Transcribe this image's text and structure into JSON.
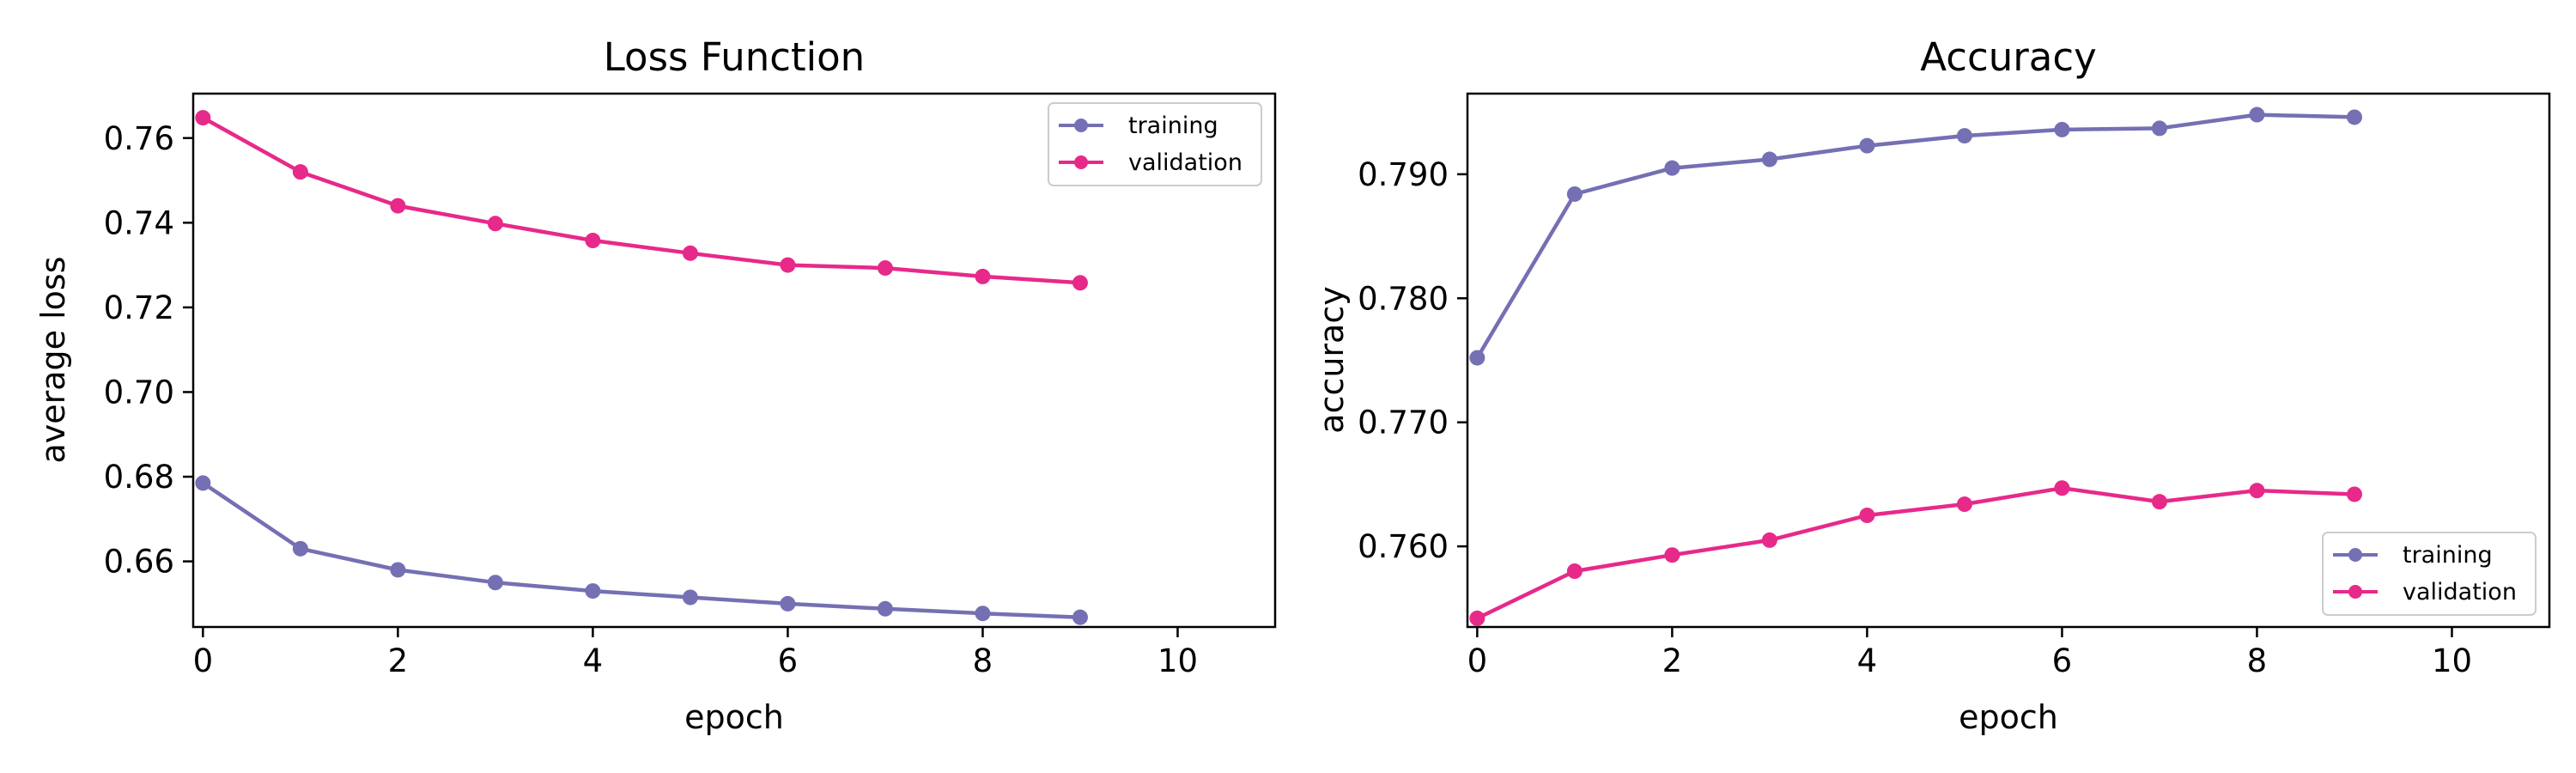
{
  "chart_data": [
    {
      "type": "line",
      "title": "Loss Function",
      "xlabel": "epoch",
      "ylabel": "average loss",
      "xlim": [
        -0.1,
        11
      ],
      "ylim": [
        0.6445,
        0.7705
      ],
      "xticks": [
        "0",
        "2",
        "4",
        "6",
        "8",
        "10"
      ],
      "yticks": [
        "0.66",
        "0.68",
        "0.70",
        "0.72",
        "0.74",
        "0.76"
      ],
      "grid": false,
      "legend_position": "top-right",
      "x": [
        0,
        1,
        2,
        3,
        4,
        5,
        6,
        7,
        8,
        9
      ],
      "series": [
        {
          "name": "training",
          "color": "#7570b3",
          "values": [
            0.6785,
            0.663,
            0.658,
            0.655,
            0.653,
            0.6515,
            0.65,
            0.6488,
            0.6477,
            0.6468
          ]
        },
        {
          "name": "validation",
          "color": "#e7298a",
          "values": [
            0.7648,
            0.752,
            0.744,
            0.7398,
            0.7358,
            0.7328,
            0.73,
            0.7293,
            0.7273,
            0.7258
          ]
        }
      ]
    },
    {
      "type": "line",
      "title": "Accuracy",
      "xlabel": "epoch",
      "ylabel": "accuracy",
      "xlim": [
        -0.1,
        11
      ],
      "ylim": [
        0.7535,
        0.7965
      ],
      "xticks": [
        "0",
        "2",
        "4",
        "6",
        "8",
        "10"
      ],
      "yticks": [
        "0.760",
        "0.770",
        "0.780",
        "0.790"
      ],
      "grid": false,
      "legend_position": "bottom-right",
      "x": [
        0,
        1,
        2,
        3,
        4,
        5,
        6,
        7,
        8,
        9
      ],
      "series": [
        {
          "name": "training",
          "color": "#7570b3",
          "values": [
            0.7752,
            0.7884,
            0.7905,
            0.7912,
            0.7923,
            0.7931,
            0.7936,
            0.7937,
            0.7948,
            0.7946
          ]
        },
        {
          "name": "validation",
          "color": "#e7298a",
          "values": [
            0.7542,
            0.758,
            0.7593,
            0.7605,
            0.7625,
            0.7634,
            0.7647,
            0.7636,
            0.7645,
            0.7642
          ]
        }
      ]
    }
  ]
}
